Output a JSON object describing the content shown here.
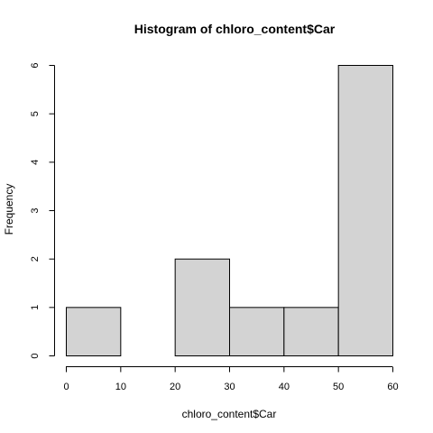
{
  "chart_data": {
    "type": "bar",
    "title": "Histogram of chloro_content$Car",
    "xlabel": "chloro_content$Car",
    "ylabel": "Frequency",
    "bin_edges": [
      0,
      10,
      20,
      30,
      40,
      50,
      60
    ],
    "values": [
      1,
      0,
      2,
      1,
      1,
      6
    ],
    "xlim": [
      0,
      60
    ],
    "ylim": [
      0,
      6
    ],
    "x_ticks": [
      "0",
      "10",
      "20",
      "30",
      "40",
      "50",
      "60"
    ],
    "y_ticks": [
      "0",
      "1",
      "2",
      "3",
      "4",
      "5",
      "6"
    ],
    "bar_fill": "#d3d3d3",
    "bar_stroke": "#000000",
    "grid": false
  }
}
